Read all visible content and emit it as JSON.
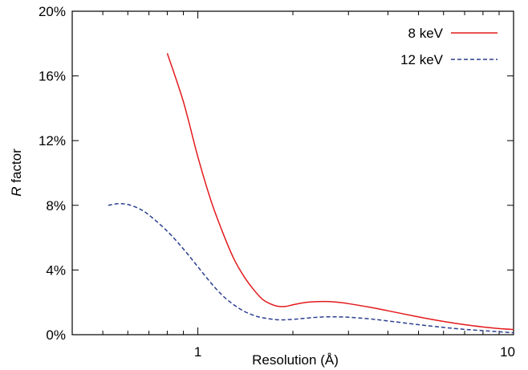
{
  "chart_data": {
    "type": "line",
    "xlabel": "Resolution (Å)",
    "ylabel_italic": "R",
    "ylabel_rest": " factor",
    "xscale": "log",
    "xlim": [
      0.4,
      10
    ],
    "ylim": [
      0,
      20
    ],
    "x_ticks": [
      {
        "value": 1,
        "label": "1"
      },
      {
        "value": 10,
        "label": "10"
      }
    ],
    "y_ticks": [
      {
        "value": 0,
        "label": "0%"
      },
      {
        "value": 4,
        "label": "4%"
      },
      {
        "value": 8,
        "label": "8%"
      },
      {
        "value": 12,
        "label": "12%"
      },
      {
        "value": 16,
        "label": "16%"
      },
      {
        "value": 20,
        "label": "20%"
      }
    ],
    "grid": false,
    "legend_position": "top-right",
    "series": [
      {
        "name": "8 keV",
        "color": "#e31a1c",
        "dash": "solid",
        "points": [
          [
            0.8,
            17.4
          ],
          [
            0.9,
            14.4
          ],
          [
            1.0,
            11.0
          ],
          [
            1.1,
            8.3
          ],
          [
            1.2,
            6.3
          ],
          [
            1.3,
            4.7
          ],
          [
            1.4,
            3.6
          ],
          [
            1.5,
            2.8
          ],
          [
            1.6,
            2.2
          ],
          [
            1.7,
            1.9
          ],
          [
            1.8,
            1.75
          ],
          [
            1.9,
            1.75
          ],
          [
            2.0,
            1.85
          ],
          [
            2.2,
            2.0
          ],
          [
            2.4,
            2.05
          ],
          [
            2.6,
            2.05
          ],
          [
            2.8,
            2.0
          ],
          [
            3.0,
            1.92
          ],
          [
            3.5,
            1.7
          ],
          [
            4.0,
            1.48
          ],
          [
            5.0,
            1.1
          ],
          [
            6.0,
            0.82
          ],
          [
            7.0,
            0.62
          ],
          [
            8.0,
            0.48
          ],
          [
            9.0,
            0.38
          ],
          [
            10.0,
            0.32
          ]
        ]
      },
      {
        "name": "12 keV",
        "color": "#2b3f8f",
        "dash": "dashed",
        "points": [
          [
            0.52,
            8.0
          ],
          [
            0.56,
            8.1
          ],
          [
            0.6,
            8.05
          ],
          [
            0.65,
            7.8
          ],
          [
            0.7,
            7.4
          ],
          [
            0.8,
            6.4
          ],
          [
            0.9,
            5.3
          ],
          [
            1.0,
            4.2
          ],
          [
            1.1,
            3.2
          ],
          [
            1.2,
            2.4
          ],
          [
            1.3,
            1.85
          ],
          [
            1.4,
            1.45
          ],
          [
            1.5,
            1.2
          ],
          [
            1.6,
            1.05
          ],
          [
            1.8,
            0.92
          ],
          [
            2.0,
            0.95
          ],
          [
            2.2,
            1.02
          ],
          [
            2.5,
            1.1
          ],
          [
            2.8,
            1.1
          ],
          [
            3.0,
            1.08
          ],
          [
            3.5,
            0.98
          ],
          [
            4.0,
            0.85
          ],
          [
            5.0,
            0.62
          ],
          [
            6.0,
            0.45
          ],
          [
            7.0,
            0.33
          ],
          [
            8.0,
            0.25
          ],
          [
            10.0,
            0.12
          ]
        ]
      }
    ]
  }
}
